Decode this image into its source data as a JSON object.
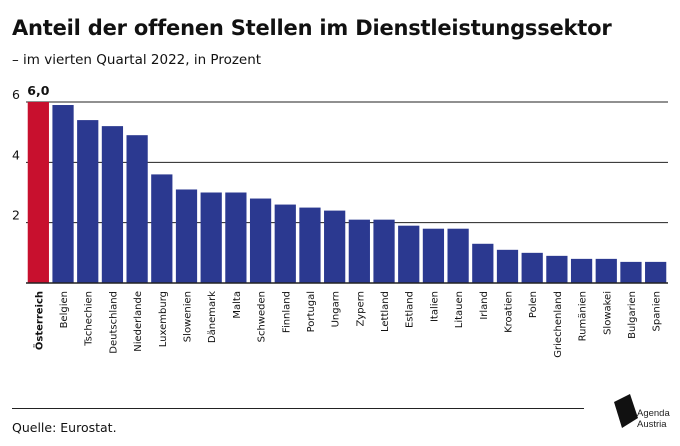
{
  "title": "Anteil der offenen Stellen im Dienstleistungssektor",
  "subtitle": "– im vierten Quartal 2022, in Prozent",
  "source": "Quelle: Eurostat.",
  "logo": {
    "line1": "Agenda",
    "line2": "Austria"
  },
  "colors": {
    "highlight": "#c8102e",
    "bar": "#2b3990",
    "text": "#111111",
    "grid": "#222222"
  },
  "chart_data": {
    "type": "bar",
    "categories": [
      "Österreich",
      "Belgien",
      "Tschechien",
      "Deutschland",
      "Niederlande",
      "Luxemburg",
      "Slowenien",
      "Dänemark",
      "Malta",
      "Schweden",
      "Finnland",
      "Portugal",
      "Ungarn",
      "Zypern",
      "Lettland",
      "Estland",
      "Italien",
      "Litauen",
      "Irland",
      "Kroatien",
      "Polen",
      "Griechenland",
      "Rumänien",
      "Slowakei",
      "Bulgarien",
      "Spanien"
    ],
    "values": [
      6.0,
      5.9,
      5.4,
      5.2,
      4.9,
      3.6,
      3.1,
      3.0,
      3.0,
      2.8,
      2.6,
      2.5,
      2.4,
      2.1,
      2.1,
      1.9,
      1.8,
      1.8,
      1.3,
      1.1,
      1.0,
      0.9,
      0.8,
      0.8,
      0.7,
      0.7
    ],
    "highlight_index": 0,
    "data_labels": [
      {
        "index": 0,
        "text": "6,0"
      }
    ],
    "yticks": [
      2,
      4,
      6
    ],
    "ylim": [
      0,
      6
    ],
    "grid": true,
    "xlabel": "",
    "ylabel": ""
  }
}
